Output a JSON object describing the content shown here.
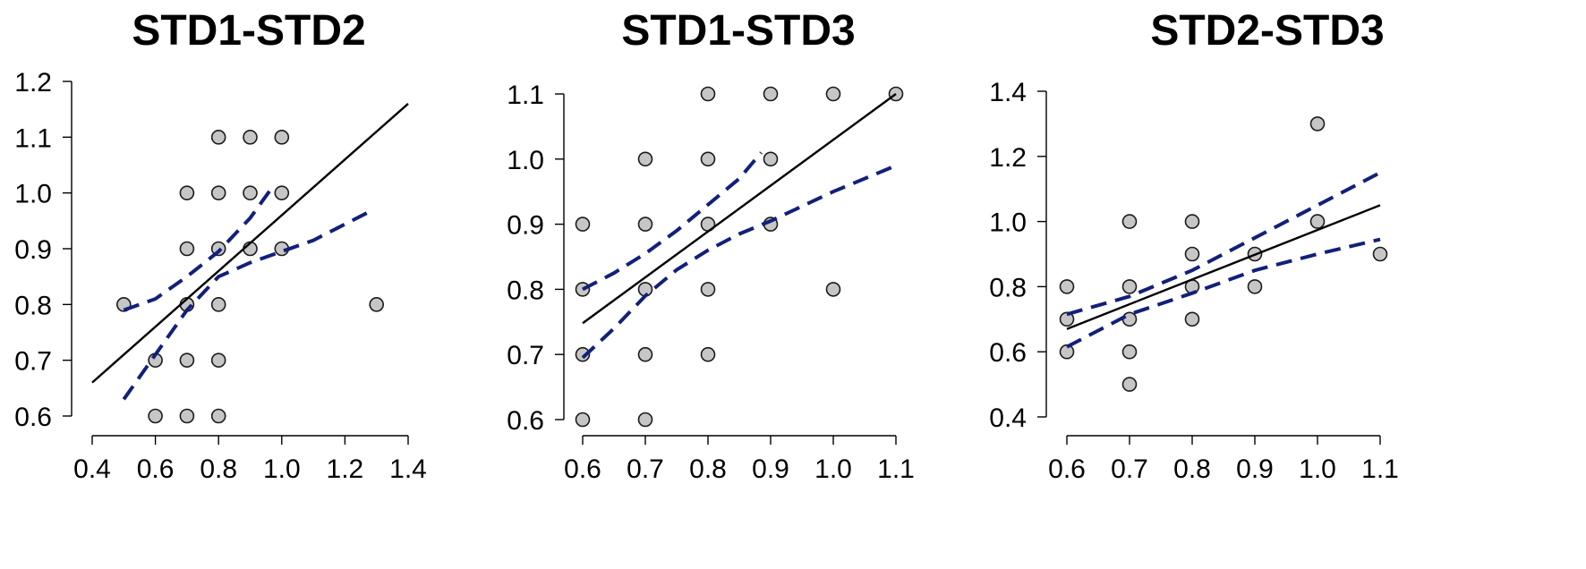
{
  "chart_data": [
    {
      "type": "scatter",
      "title": "STD1-STD2",
      "xlim": [
        0.4,
        1.4
      ],
      "ylim": [
        0.6,
        1.2
      ],
      "xticks": [
        "0.4",
        "0.6",
        "0.8",
        "1.0",
        "1.2",
        "1.4"
      ],
      "yticks": [
        "0.6",
        "0.7",
        "0.8",
        "0.9",
        "1.0",
        "1.1",
        "1.2"
      ],
      "points": [
        [
          0.5,
          0.8
        ],
        [
          0.6,
          0.7
        ],
        [
          0.6,
          0.6
        ],
        [
          0.7,
          1.0
        ],
        [
          0.7,
          0.9
        ],
        [
          0.7,
          0.8
        ],
        [
          0.7,
          0.7
        ],
        [
          0.7,
          0.6
        ],
        [
          0.8,
          1.1
        ],
        [
          0.8,
          1.0
        ],
        [
          0.8,
          0.9
        ],
        [
          0.8,
          0.8
        ],
        [
          0.8,
          0.7
        ],
        [
          0.8,
          0.6
        ],
        [
          0.9,
          1.1
        ],
        [
          0.9,
          1.0
        ],
        [
          0.9,
          0.9
        ],
        [
          1.0,
          1.1
        ],
        [
          1.0,
          1.0
        ],
        [
          1.0,
          0.9
        ],
        [
          1.3,
          0.8
        ]
      ],
      "fit_line": [
        [
          0.4,
          0.66
        ],
        [
          1.4,
          1.16
        ]
      ],
      "ci_upper": [
        [
          0.5,
          0.79
        ],
        [
          0.6,
          0.81
        ],
        [
          0.7,
          0.85
        ],
        [
          0.8,
          0.895
        ],
        [
          0.9,
          0.955
        ],
        [
          0.97,
          1.01
        ]
      ],
      "ci_lower": [
        [
          0.5,
          0.63
        ],
        [
          0.6,
          0.71
        ],
        [
          0.7,
          0.79
        ],
        [
          0.8,
          0.85
        ],
        [
          0.9,
          0.875
        ],
        [
          1.0,
          0.895
        ],
        [
          1.1,
          0.915
        ],
        [
          1.29,
          0.97
        ]
      ]
    },
    {
      "type": "scatter",
      "title": "STD1-STD3",
      "xlim": [
        0.6,
        1.1
      ],
      "ylim": [
        0.6,
        1.1
      ],
      "xticks": [
        "0.6",
        "0.7",
        "0.8",
        "0.9",
        "1.0",
        "1.1"
      ],
      "yticks": [
        "0.6",
        "0.7",
        "0.8",
        "0.9",
        "1.0",
        "1.1"
      ],
      "points": [
        [
          0.6,
          0.9
        ],
        [
          0.6,
          0.8
        ],
        [
          0.6,
          0.7
        ],
        [
          0.6,
          0.6
        ],
        [
          0.7,
          1.0
        ],
        [
          0.7,
          0.9
        ],
        [
          0.7,
          0.8
        ],
        [
          0.7,
          0.7
        ],
        [
          0.7,
          0.6
        ],
        [
          0.8,
          1.1
        ],
        [
          0.8,
          1.0
        ],
        [
          0.8,
          0.9
        ],
        [
          0.8,
          0.8
        ],
        [
          0.8,
          0.7
        ],
        [
          0.9,
          1.1
        ],
        [
          0.9,
          1.0
        ],
        [
          0.9,
          0.9
        ],
        [
          1.0,
          1.1
        ],
        [
          1.0,
          0.8
        ],
        [
          1.1,
          1.1
        ]
      ],
      "fit_line": [
        [
          0.6,
          0.748
        ],
        [
          1.1,
          1.1
        ]
      ],
      "ci_upper": [
        [
          0.6,
          0.8
        ],
        [
          0.65,
          0.825
        ],
        [
          0.7,
          0.855
        ],
        [
          0.75,
          0.89
        ],
        [
          0.8,
          0.93
        ],
        [
          0.85,
          0.97
        ],
        [
          0.885,
          1.01
        ]
      ],
      "ci_lower": [
        [
          0.6,
          0.695
        ],
        [
          0.65,
          0.74
        ],
        [
          0.7,
          0.79
        ],
        [
          0.75,
          0.83
        ],
        [
          0.8,
          0.86
        ],
        [
          0.85,
          0.885
        ],
        [
          0.9,
          0.905
        ],
        [
          1.0,
          0.95
        ],
        [
          1.1,
          0.99
        ]
      ]
    },
    {
      "type": "scatter",
      "title": "STD2-STD3",
      "xlim": [
        0.6,
        1.1
      ],
      "ylim": [
        0.4,
        1.4
      ],
      "xticks": [
        "0.6",
        "0.7",
        "0.8",
        "0.9",
        "1.0",
        "1.1"
      ],
      "yticks": [
        "0.4",
        "0.6",
        "0.8",
        "1.0",
        "1.2",
        "1.4"
      ],
      "points": [
        [
          0.6,
          0.8
        ],
        [
          0.6,
          0.7
        ],
        [
          0.6,
          0.6
        ],
        [
          0.7,
          1.0
        ],
        [
          0.7,
          0.8
        ],
        [
          0.7,
          0.7
        ],
        [
          0.7,
          0.6
        ],
        [
          0.7,
          0.5
        ],
        [
          0.8,
          1.0
        ],
        [
          0.8,
          0.9
        ],
        [
          0.8,
          0.8
        ],
        [
          0.8,
          0.7
        ],
        [
          0.9,
          0.9
        ],
        [
          0.9,
          0.8
        ],
        [
          1.0,
          1.3
        ],
        [
          1.0,
          1.0
        ],
        [
          1.1,
          0.9
        ]
      ],
      "fit_line": [
        [
          0.6,
          0.67
        ],
        [
          1.1,
          1.05
        ]
      ],
      "ci_upper": [
        [
          0.6,
          0.715
        ],
        [
          0.7,
          0.77
        ],
        [
          0.8,
          0.85
        ],
        [
          0.9,
          0.95
        ],
        [
          1.0,
          1.05
        ],
        [
          1.1,
          1.15
        ]
      ],
      "ci_lower": [
        [
          0.6,
          0.615
        ],
        [
          0.7,
          0.715
        ],
        [
          0.8,
          0.78
        ],
        [
          0.9,
          0.85
        ],
        [
          1.0,
          0.9
        ],
        [
          1.1,
          0.945
        ]
      ]
    }
  ]
}
